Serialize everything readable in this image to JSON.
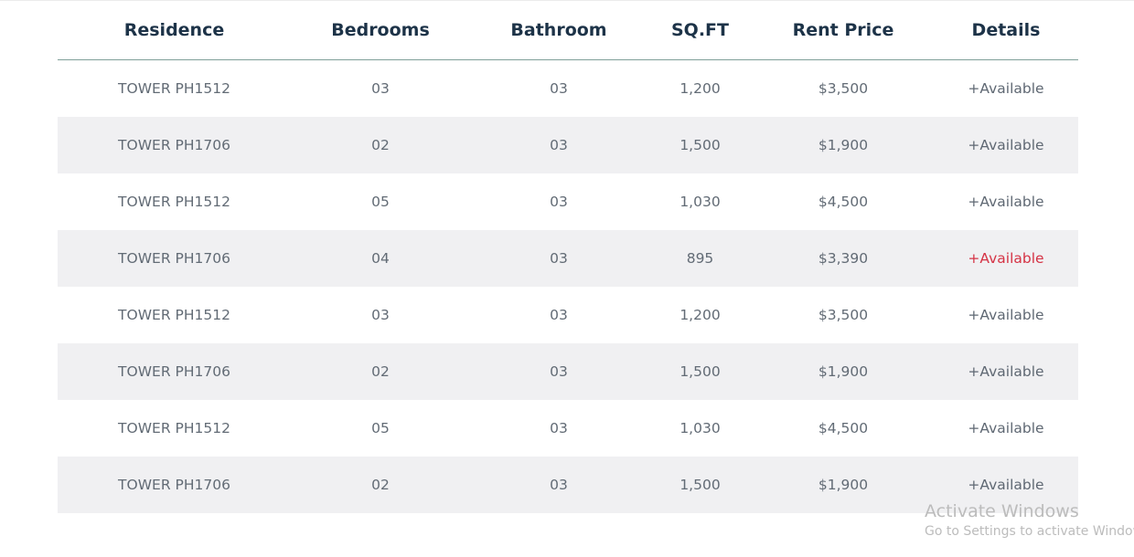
{
  "table": {
    "headers": [
      "Residence",
      "Bedrooms",
      "Bathroom",
      "SQ.FT",
      "Rent Price",
      "Details"
    ],
    "rows": [
      {
        "residence": "TOWER PH1512",
        "bedrooms": "03",
        "bathroom": "03",
        "sqft": "1,200",
        "rent": "$3,500",
        "details": "+Available"
      },
      {
        "residence": "TOWER PH1706",
        "bedrooms": "02",
        "bathroom": "03",
        "sqft": "1,500",
        "rent": "$1,900",
        "details": "+Available"
      },
      {
        "residence": "TOWER PH1512",
        "bedrooms": "05",
        "bathroom": "03",
        "sqft": "1,030",
        "rent": "$4,500",
        "details": "+Available"
      },
      {
        "residence": "TOWER PH1706",
        "bedrooms": "04",
        "bathroom": "03",
        "sqft": "895",
        "rent": "$3,390",
        "details": "+Available"
      },
      {
        "residence": "TOWER PH1512",
        "bedrooms": "03",
        "bathroom": "03",
        "sqft": "1,200",
        "rent": "$3,500",
        "details": "+Available"
      },
      {
        "residence": "TOWER PH1706",
        "bedrooms": "02",
        "bathroom": "03",
        "sqft": "1,500",
        "rent": "$1,900",
        "details": "+Available"
      },
      {
        "residence": "TOWER PH1512",
        "bedrooms": "05",
        "bathroom": "03",
        "sqft": "1,030",
        "rent": "$4,500",
        "details": "+Available"
      },
      {
        "residence": "TOWER PH1706",
        "bedrooms": "02",
        "bathroom": "03",
        "sqft": "1,500",
        "rent": "$1,900",
        "details": "+Available"
      }
    ],
    "highlighted_row_index": 3
  },
  "colors": {
    "header_text": "#1d3348",
    "cell_text": "#626b75",
    "stripe_bg": "#f0f0f2",
    "header_rule": "#7f9f99",
    "highlight_link": "#d53345"
  },
  "watermark": {
    "line1": "Activate Windows",
    "line2": "Go to Settings to activate Windows."
  }
}
